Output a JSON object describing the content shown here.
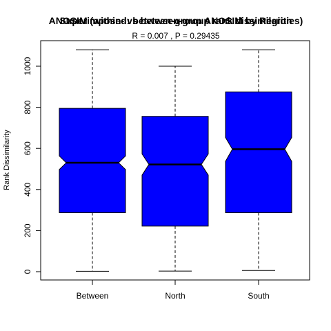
{
  "chart_data": {
    "type": "box",
    "title_overlap": [
      "ANOSIM (within- vs between-group rank dissimilarities)",
      "Superimposed: between-group ANOSIM by Region"
    ],
    "subtitle": "R =  0.007 ,  P =  0.29435",
    "ylabel": "Rank Dissimilarity",
    "xlabel": "",
    "categories": [
      "Between",
      "North",
      "South"
    ],
    "ylim": [
      -40,
      1110
    ],
    "yticks": [
      0,
      200,
      400,
      600,
      800,
      1000
    ],
    "notched": true,
    "box_color": "#0000ff",
    "boxes": [
      {
        "min": 2,
        "q1": 287,
        "median": 530,
        "q3": 795,
        "max": 1080,
        "notch_low": 497,
        "notch_high": 563
      },
      {
        "min": 3,
        "q1": 222,
        "median": 522,
        "q3": 756,
        "max": 1000,
        "notch_low": 470,
        "notch_high": 573
      },
      {
        "min": 6,
        "q1": 287,
        "median": 596,
        "q3": 875,
        "max": 1080,
        "notch_low": 537,
        "notch_high": 653
      }
    ]
  }
}
